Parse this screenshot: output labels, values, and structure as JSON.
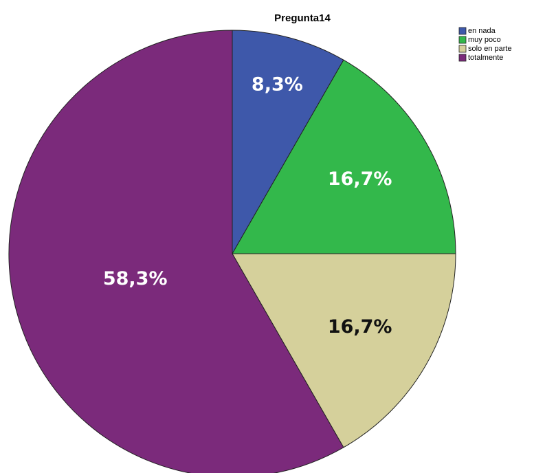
{
  "chart_data": {
    "type": "pie",
    "title": "Pregunta14",
    "categories": [
      "en nada",
      "muy poco",
      "solo en parte",
      "totalmente"
    ],
    "values": [
      8.3,
      16.7,
      16.7,
      58.3
    ],
    "value_labels": [
      "8,3%",
      "16,7%",
      "16,7%",
      "58,3%"
    ],
    "colors": [
      "#3e58aa",
      "#33b84b",
      "#d5d09b",
      "#7b2a7b"
    ],
    "legend": "upper right"
  }
}
